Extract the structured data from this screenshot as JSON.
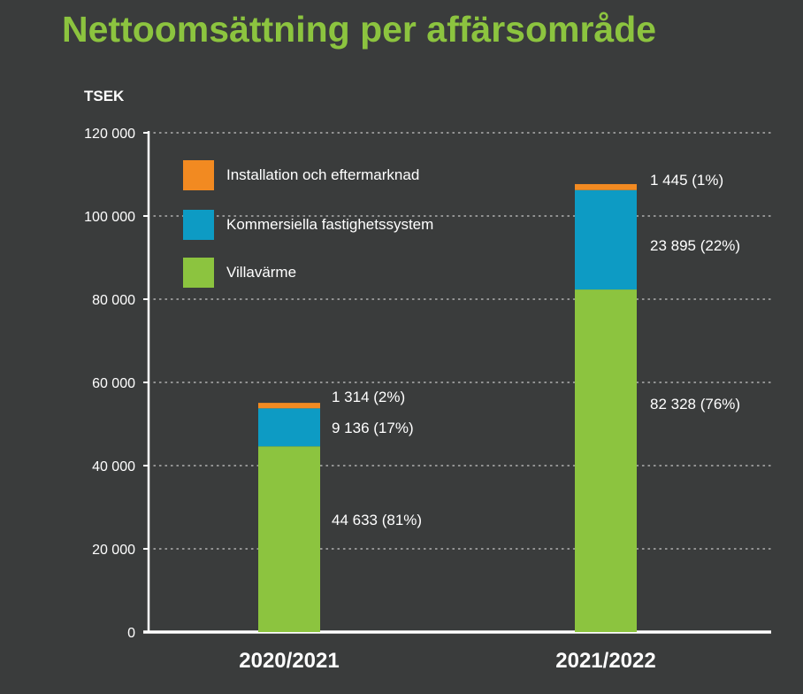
{
  "title": "Nettoomsättning per affärsområde",
  "unit_label": "TSEK",
  "chart_data": {
    "type": "bar",
    "stacked": true,
    "categories": [
      "2020/2021",
      "2021/2022"
    ],
    "series": [
      {
        "name": "Villavärme",
        "color": "#8cc43f",
        "values": [
          44633,
          82328
        ],
        "labels": [
          "44 633 (81%)",
          "82 328 (76%)"
        ]
      },
      {
        "name": "Kommersiella fastighetssystem",
        "color": "#0d9bc4",
        "values": [
          9136,
          23895
        ],
        "labels": [
          "9 136 (17%)",
          "23 895 (22%)"
        ]
      },
      {
        "name": "Installation och eftermarknad",
        "color": "#f28a21",
        "values": [
          1314,
          1445
        ],
        "labels": [
          "1 314 (2%)",
          "1 445 (1%)"
        ]
      }
    ],
    "legend_order": [
      "Installation och eftermarknad",
      "Kommersiella fastighetssystem",
      "Villavärme"
    ],
    "ylim": [
      0,
      120000
    ],
    "yticks": [
      0,
      20000,
      40000,
      60000,
      80000,
      100000,
      120000
    ],
    "ytick_labels": [
      "0",
      "20 000",
      "40 000",
      "60 000",
      "80 000",
      "100 000",
      "120 000"
    ],
    "grid": true,
    "legend_position": "top-left"
  }
}
